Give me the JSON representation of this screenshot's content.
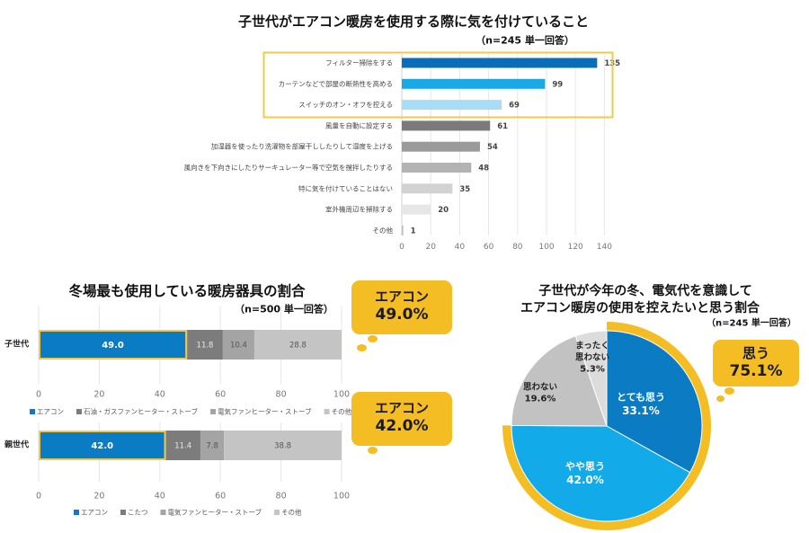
{
  "chart_data": [
    {
      "type": "bar",
      "orientation": "horizontal",
      "title": "子世代がエアコン暖房を使用する際に気を付けていること",
      "subtitle": "（n=245 単一回答）",
      "categories": [
        "フィルター掃除をする",
        "カーテンなどで部屋の断熱性を高める",
        "スイッチのオン・オフを控える",
        "風量を自動に設定する",
        "加湿器を使ったり洗濯物を部屋干ししたりして湿度を上げる",
        "風向きを下向きにしたりサーキュレーター等で空気を撹拌したりする",
        "特に気を付けていることはない",
        "室外機周辺を掃除する",
        "その他"
      ],
      "values": [
        135,
        99,
        69,
        61,
        54,
        48,
        35,
        20,
        1
      ],
      "colors": [
        "#0b6cb7",
        "#1aa8e6",
        "#a9dcf5",
        "#7a7a7a",
        "#9a9a9a",
        "#b3b3b3",
        "#d2d2d2",
        "#e6e6e6",
        "#bdbdbd"
      ],
      "highlight_top_n": 3,
      "highlight_color": "#f0c84a",
      "xlim": [
        0,
        140
      ],
      "xticks": [
        0,
        20,
        40,
        60,
        80,
        100,
        120,
        140
      ],
      "grid": true
    },
    {
      "type": "bar",
      "orientation": "horizontal",
      "stacked": true,
      "title": "冬場最も使用している暖房器具の割合",
      "subtitle": "（n=500 単一回答）",
      "panels": [
        {
          "category": "子世代",
          "series": [
            {
              "name": "エアコン",
              "value": 49.0,
              "color": "#0b7bc4"
            },
            {
              "name": "石油・ガスファンヒーター・ストーブ",
              "value": 11.8,
              "color": "#7c7c7c"
            },
            {
              "name": "電気ファンヒーター・ストーブ",
              "value": 10.4,
              "color": "#a4a4a4"
            },
            {
              "name": "その他",
              "value": 28.8,
              "color": "#c4c4c4"
            }
          ],
          "callout": {
            "label": "エアコン",
            "value": "49.0%"
          }
        },
        {
          "category": "親世代",
          "series": [
            {
              "name": "エアコン",
              "value": 42.0,
              "color": "#0b7bc4"
            },
            {
              "name": "こたつ",
              "value": 11.4,
              "color": "#7c7c7c"
            },
            {
              "name": "電気ファンヒーター・ストーブ",
              "value": 7.8,
              "color": "#a4a4a4"
            },
            {
              "name": "その他",
              "value": 38.8,
              "color": "#c4c4c4"
            }
          ],
          "callout": {
            "label": "エアコン",
            "value": "42.0%"
          }
        }
      ],
      "xlim": [
        0,
        100
      ],
      "xticks": [
        0,
        20,
        40,
        60,
        80,
        100
      ],
      "legend_position": "bottom",
      "highlight_color": "#f0c84a",
      "grid": true
    },
    {
      "type": "pie",
      "title": [
        "子世代が今年の冬、電気代を意識して",
        "エアコン暖房の使用を控えたいと思う割合"
      ],
      "subtitle": "（n=245 単一回答）",
      "slices": [
        {
          "label": "とても思う",
          "value": 33.1,
          "color": "#0b7bc4",
          "text_color": "#ffffff"
        },
        {
          "label": "やや思う",
          "value": 42.0,
          "color": "#13aaea",
          "text_color": "#ffffff"
        },
        {
          "label": "思わない",
          "value": 19.6,
          "color": "#c2c2c2",
          "text_color": "#222222"
        },
        {
          "label": "まったく思わない",
          "label_lines": [
            "まったく",
            "思わない"
          ],
          "value": 5.3,
          "color": "#dcdcdc",
          "text_color": "#222222"
        }
      ],
      "ring_highlight": {
        "label": "思う",
        "value": "75.1%",
        "color": "#f5bd24"
      }
    }
  ]
}
